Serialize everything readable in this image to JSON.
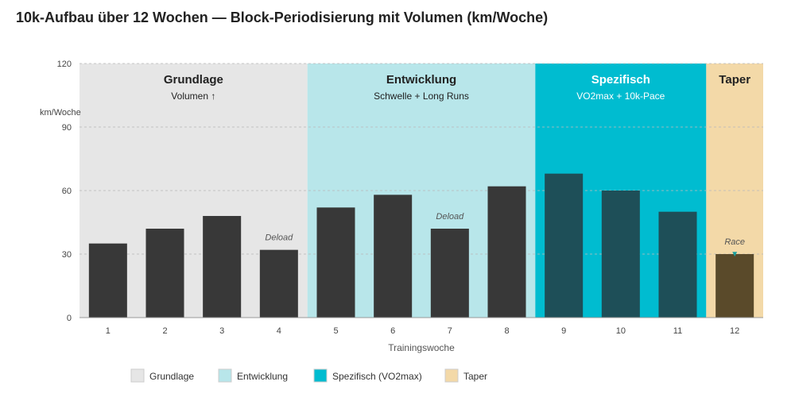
{
  "chart_data": {
    "type": "bar",
    "title": "10k-Aufbau über 12 Wochen — Block-Periodisierung mit Volumen (km/Woche)",
    "xlabel": "Trainingswoche",
    "ylabel": "km/Woche",
    "ylim": [
      0,
      120
    ],
    "yticks": [
      0,
      30,
      60,
      90,
      120
    ],
    "grid": true,
    "categories": [
      "1",
      "2",
      "3",
      "4",
      "5",
      "6",
      "7",
      "8",
      "9",
      "10",
      "11",
      "12"
    ],
    "values": [
      35,
      42,
      48,
      32,
      52,
      58,
      42,
      62,
      68,
      60,
      50,
      30
    ],
    "bar_colors": [
      "#383838",
      "#383838",
      "#383838",
      "#383838",
      "#383838",
      "#383838",
      "#383838",
      "#383838",
      "#1e4f58",
      "#1e4f58",
      "#1e4f58",
      "#5a4a2a"
    ],
    "phases": [
      {
        "name": "Grundlage",
        "subtitle": "Volumen ↑",
        "start_week": 1,
        "end_week": 4,
        "color": "#e6e6e6",
        "text_color": "#222222",
        "legend": "Grundlage"
      },
      {
        "name": "Entwicklung",
        "subtitle": "Schwelle + Long Runs",
        "start_week": 5,
        "end_week": 8,
        "color": "#b8e6ea",
        "text_color": "#222222",
        "legend": "Entwicklung"
      },
      {
        "name": "Spezifisch",
        "subtitle": "VO2max + 10k-Pace",
        "start_week": 9,
        "end_week": 11,
        "color": "#00bcd0",
        "text_color": "#ffffff",
        "legend": "Spezifisch (VO2max)"
      },
      {
        "name": "Taper",
        "subtitle": "",
        "start_week": 12,
        "end_week": 12,
        "color": "#f3d9a8",
        "text_color": "#222222",
        "legend": "Taper"
      }
    ],
    "annotations": [
      {
        "week": 4,
        "text": "Deload"
      },
      {
        "week": 7,
        "text": "Deload"
      },
      {
        "week": 12,
        "text": "Race",
        "marker": "▼",
        "marker_color": "#1aa0a0"
      }
    ],
    "legend_position": "bottom-left"
  }
}
